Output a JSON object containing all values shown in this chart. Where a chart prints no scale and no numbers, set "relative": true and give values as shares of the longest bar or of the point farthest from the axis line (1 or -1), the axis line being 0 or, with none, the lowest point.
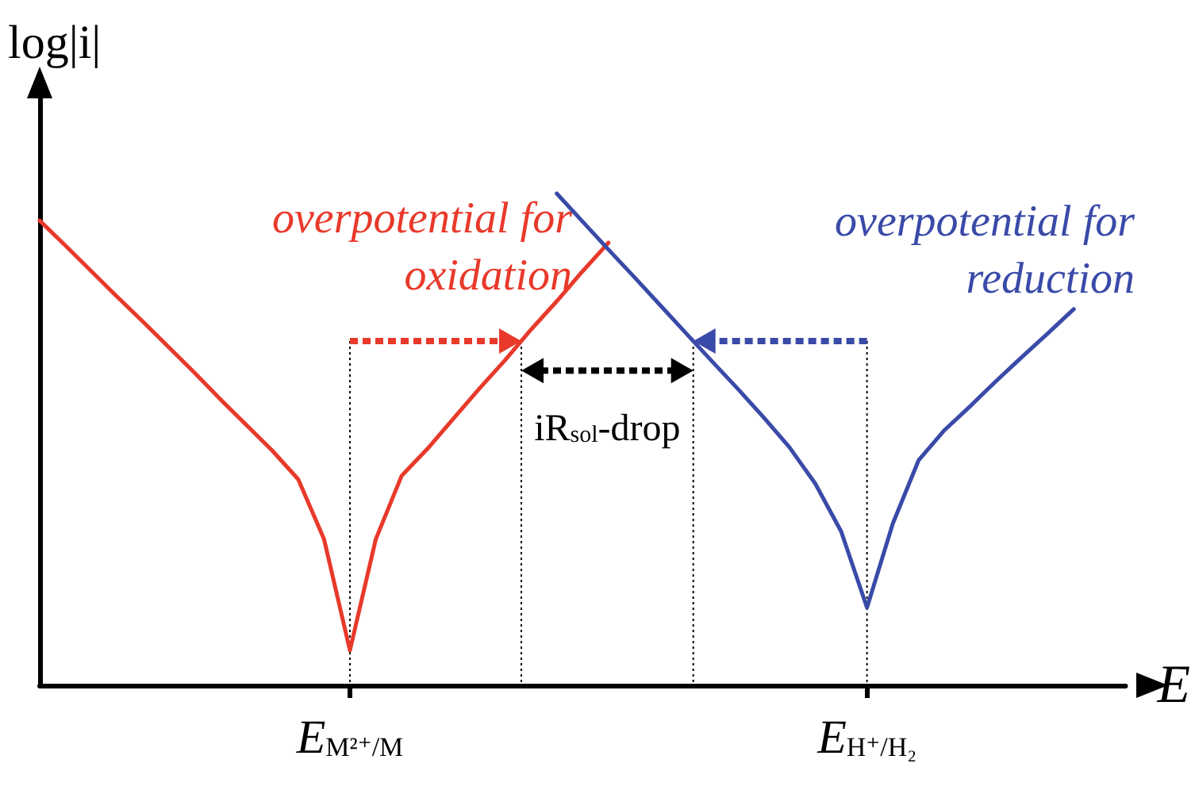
{
  "chart_data": {
    "type": "line",
    "relative": true,
    "xlabel": "E",
    "ylabel": "log|i|",
    "categories": [
      null,
      null,
      null,
      null,
      null,
      null,
      null,
      null,
      null,
      null,
      null,
      null,
      "E$_{M²⁺/M}$",
      null,
      null,
      null,
      null,
      null,
      null,
      null,
      null,
      null,
      null,
      null,
      null,
      null,
      null,
      null,
      null,
      null,
      null,
      null,
      "E$_{H⁺/H₂}$",
      null,
      null,
      null,
      null,
      null,
      null,
      null,
      null,
      null,
      null
    ],
    "series": [
      {
        "color": "#e8392a",
        "values": [
          0.945,
          0.894,
          0.842,
          0.79,
          0.739,
          0.687,
          0.635,
          0.581,
          0.529,
          0.477,
          0.419,
          0.297,
          0.071,
          0.297,
          0.426,
          0.481,
          0.542,
          0.603,
          0.661,
          0.723,
          0.781,
          0.842,
          0.9,
          null,
          null,
          null,
          null,
          null,
          null,
          null,
          null,
          null,
          null,
          null,
          null,
          null,
          null,
          null,
          null,
          null,
          null,
          null,
          null
        ]
      },
      {
        "color": "#3a4aa8",
        "values": [
          null,
          null,
          null,
          null,
          null,
          null,
          null,
          null,
          null,
          null,
          null,
          null,
          null,
          null,
          null,
          null,
          null,
          null,
          null,
          null,
          1,
          0.943,
          0.886,
          0.83,
          0.773,
          0.716,
          0.659,
          0.603,
          0.545,
          0.484,
          0.41,
          0.313,
          0.158,
          0.329,
          0.458,
          0.519,
          0.568,
          0.619,
          0.668,
          0.716,
          0.765,
          null,
          null
        ]
      }
    ],
    "annotations": [
      "overpotential for oxidation",
      "overpotential for reduction",
      "iR$_{sol}$-drop"
    ],
    "tick_labels": "x",
    "grid": false,
    "marker": "none",
    "line_style": "solid"
  }
}
